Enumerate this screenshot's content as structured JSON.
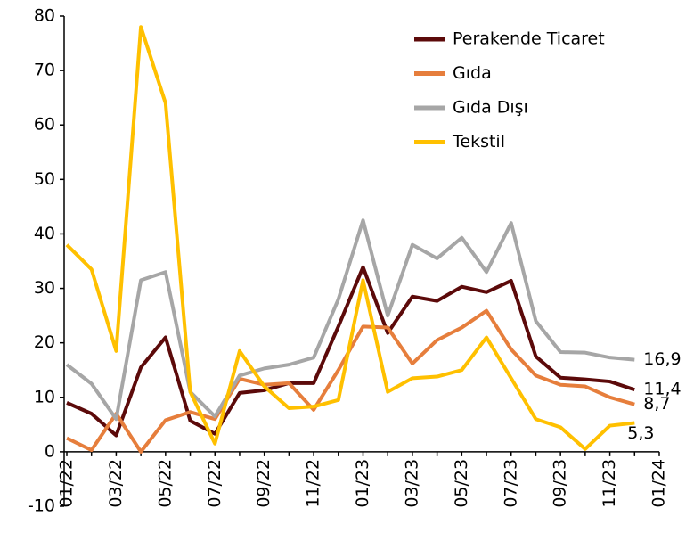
{
  "chart_data": {
    "type": "line",
    "categories": [
      "01/22",
      null,
      "03/22",
      null,
      "05/22",
      null,
      "07/22",
      null,
      "09/22",
      null,
      "11/22",
      null,
      "01/23",
      null,
      "03/23",
      null,
      "05/23",
      null,
      "07/23",
      null,
      "09/23",
      null,
      "11/23",
      null,
      "01/24"
    ],
    "series": [
      {
        "name": "Perakende Ticaret",
        "color": "#5c0a0a",
        "values": [
          9,
          7,
          3,
          15.5,
          21,
          5.7,
          3.3,
          10.8,
          11.3,
          12.6,
          12.6,
          23,
          33.9,
          21.8,
          28.5,
          27.7,
          30.3,
          29.3,
          31.4,
          17.5,
          13.6,
          13.3,
          12.9,
          11.4,
          null
        ],
        "value_labels": [
          null,
          null,
          null,
          null,
          null,
          null,
          null,
          null,
          null,
          null,
          null,
          null,
          null,
          null,
          null,
          null,
          null,
          null,
          null,
          null,
          null,
          null,
          null,
          "11,4",
          null
        ]
      },
      {
        "name": "Gıda",
        "color": "#e67e3c",
        "values": [
          2.5,
          0.3,
          7,
          0,
          5.8,
          7.3,
          6,
          13.4,
          12.3,
          12.6,
          7.7,
          15,
          23,
          22.8,
          16.2,
          20.5,
          22.8,
          25.9,
          18.8,
          14,
          12.3,
          12,
          10,
          8.7,
          null
        ],
        "value_labels": [
          null,
          null,
          null,
          null,
          null,
          null,
          null,
          null,
          null,
          null,
          null,
          null,
          null,
          null,
          null,
          null,
          null,
          null,
          null,
          null,
          null,
          null,
          null,
          "8,7",
          null
        ]
      },
      {
        "name": "Gıda Dışı",
        "color": "#a6a6a6",
        "values": [
          16,
          12.5,
          6,
          31.5,
          33,
          11,
          6.5,
          14,
          15.3,
          16,
          17.3,
          28,
          42.5,
          25,
          38,
          35.5,
          39.3,
          33,
          42,
          24,
          18.3,
          18.2,
          17.3,
          16.9,
          null
        ],
        "value_labels": [
          null,
          null,
          null,
          null,
          null,
          null,
          null,
          null,
          null,
          null,
          null,
          null,
          null,
          null,
          null,
          null,
          null,
          null,
          null,
          null,
          null,
          null,
          null,
          "16,9",
          null
        ]
      },
      {
        "name": "Tekstil",
        "color": "#ffc000",
        "values": [
          38,
          33.5,
          18.5,
          78,
          64,
          11,
          1.5,
          18.5,
          12,
          8,
          8.3,
          9.5,
          31.5,
          11,
          13.5,
          13.8,
          15,
          21,
          13.5,
          6,
          4.5,
          0.5,
          4.8,
          5.3,
          null
        ],
        "value_labels": [
          null,
          null,
          null,
          null,
          null,
          null,
          null,
          null,
          null,
          null,
          null,
          null,
          null,
          null,
          null,
          null,
          null,
          null,
          null,
          null,
          null,
          null,
          null,
          "5,3",
          null
        ]
      }
    ],
    "ylim": [
      -10,
      80
    ],
    "yticks": [
      -10,
      0,
      10,
      20,
      30,
      40,
      50,
      60,
      70,
      80
    ],
    "legend": "top-right"
  }
}
